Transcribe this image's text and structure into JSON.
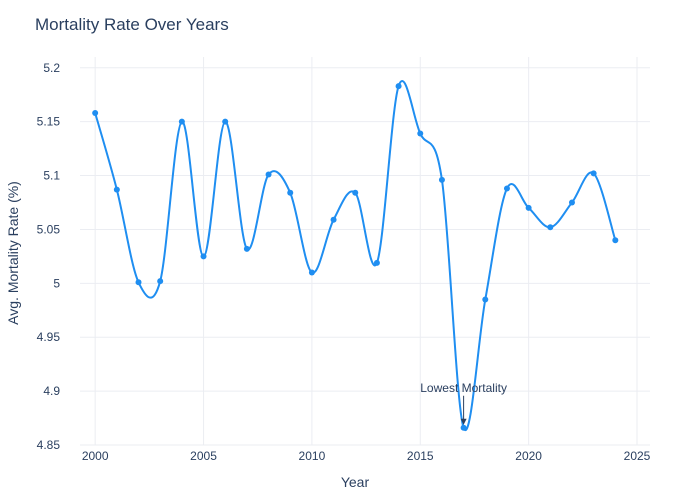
{
  "chart_data": {
    "type": "line",
    "title": "Mortality Rate Over Years",
    "xlabel": "Year",
    "ylabel": "Avg. Mortality Rate (%)",
    "xlim": [
      1999.3,
      2025.6
    ],
    "ylim": [
      4.85,
      5.21
    ],
    "xticks": [
      2000,
      2005,
      2010,
      2015,
      2020,
      2025
    ],
    "xtick_labels": [
      "2000",
      "2005",
      "2010",
      "2015",
      "2020",
      "2025"
    ],
    "yticks": [
      4.85,
      4.9,
      4.95,
      5.0,
      5.05,
      5.1,
      5.15,
      5.2
    ],
    "ytick_labels": [
      "4.85",
      "4.9",
      "4.95",
      "5",
      "5.05",
      "5.1",
      "5.15",
      "5.2"
    ],
    "grid": true,
    "line_shape": "spline",
    "series": [
      {
        "color": "#1f8ef1",
        "x": [
          2000,
          2001,
          2002,
          2003,
          2004,
          2005,
          2006,
          2007,
          2008,
          2009,
          2010,
          2011,
          2012,
          2013,
          2014,
          2015,
          2016,
          2017,
          2018,
          2019,
          2020,
          2021,
          2022,
          2023,
          2024
        ],
        "y": [
          5.158,
          5.087,
          5.001,
          5.002,
          5.15,
          5.025,
          5.15,
          5.032,
          5.101,
          5.084,
          5.01,
          5.059,
          5.084,
          5.019,
          5.183,
          5.139,
          5.096,
          4.866,
          4.985,
          5.088,
          5.07,
          5.052,
          5.075,
          5.102,
          5.04
        ]
      }
    ],
    "annotations": [
      {
        "text": "Lowest Mortality",
        "x": 2017,
        "y": 4.866
      }
    ]
  }
}
